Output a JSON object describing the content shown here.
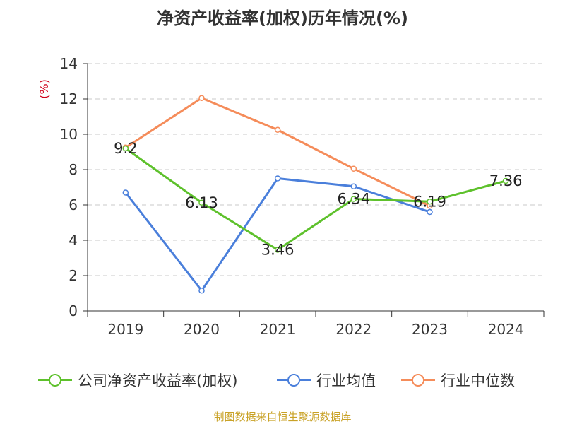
{
  "title": "净资产收益率(加权)历年情况(%)",
  "source": "制图数据来自恒生聚源数据库",
  "chart_data": {
    "type": "line",
    "title": "净资产收益率(加权)历年情况(%)",
    "ylabel": "(%)",
    "xlabel": "",
    "categories": [
      "2019",
      "2020",
      "2021",
      "2022",
      "2023",
      "2024"
    ],
    "ylim": [
      0,
      14
    ],
    "yticks": [
      0,
      2,
      4,
      6,
      8,
      10,
      12,
      14
    ],
    "grid": true,
    "legend_position": "bottom",
    "series": [
      {
        "name": "公司净资产收益率(加权)",
        "color": "#5ec12c",
        "values": [
          9.2,
          6.13,
          3.46,
          6.34,
          6.19,
          7.36
        ],
        "labels": [
          "9.2",
          "6.13",
          "3.46",
          "6.34",
          "6.19",
          "7.36"
        ]
      },
      {
        "name": "行业均值",
        "color": "#4a7fdb",
        "values": [
          6.7,
          1.15,
          7.5,
          7.05,
          5.6,
          null
        ]
      },
      {
        "name": "行业中位数",
        "color": "#f58c5a",
        "values": [
          9.25,
          12.05,
          10.25,
          8.05,
          5.95,
          null
        ]
      }
    ]
  }
}
